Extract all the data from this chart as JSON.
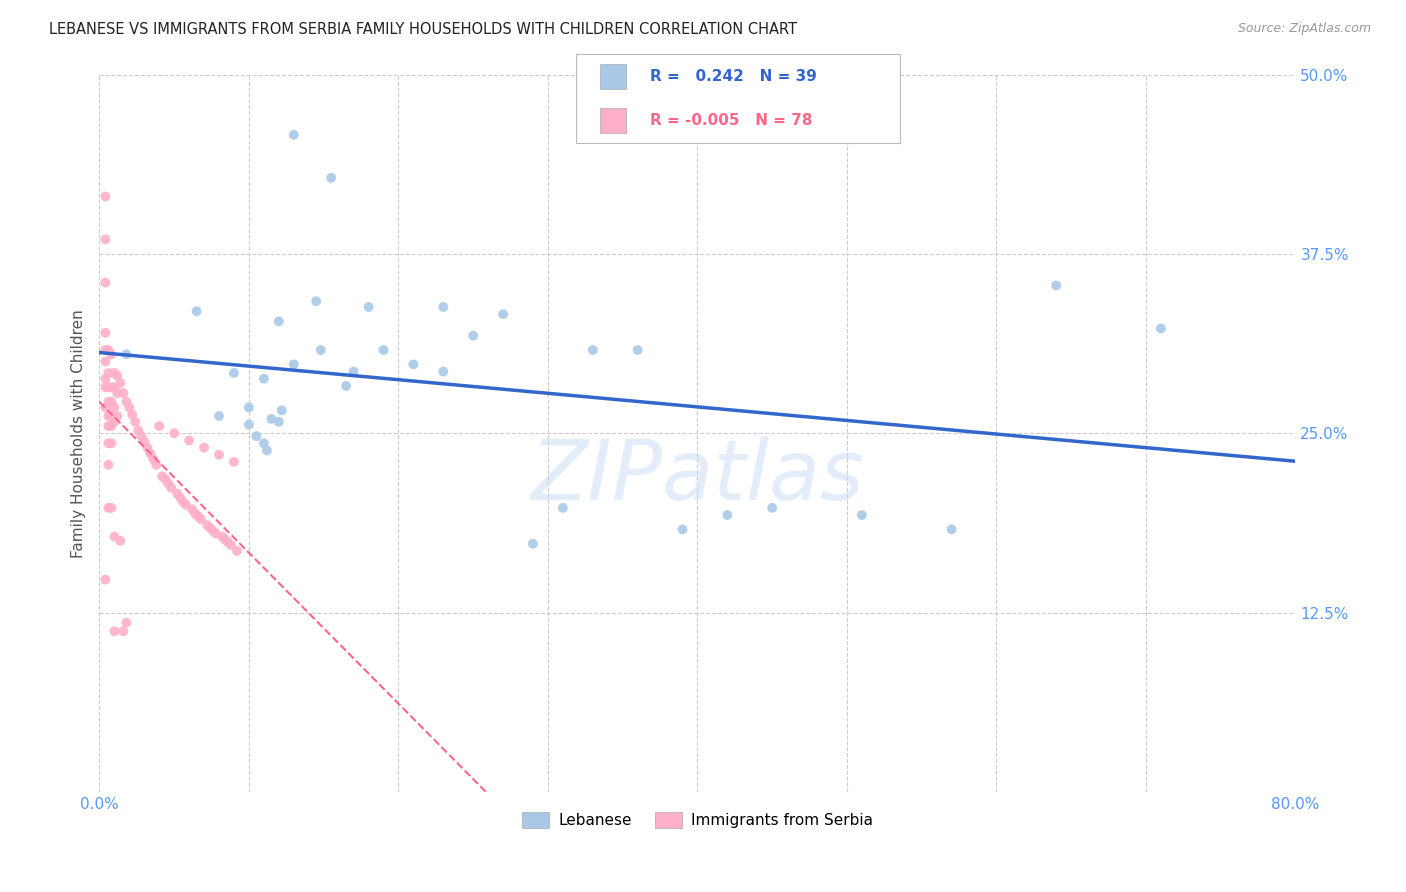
{
  "title": "LEBANESE VS IMMIGRANTS FROM SERBIA FAMILY HOUSEHOLDS WITH CHILDREN CORRELATION CHART",
  "source": "Source: ZipAtlas.com",
  "ylabel": "Family Households with Children",
  "xlim": [
    0.0,
    0.8
  ],
  "ylim": [
    0.0,
    0.5
  ],
  "xticks": [
    0.0,
    0.1,
    0.2,
    0.3,
    0.4,
    0.5,
    0.6,
    0.7,
    0.8
  ],
  "xticklabels": [
    "0.0%",
    "",
    "",
    "",
    "",
    "",
    "",
    "",
    "80.0%"
  ],
  "yticks": [
    0.0,
    0.125,
    0.25,
    0.375,
    0.5
  ],
  "yticklabels": [
    "",
    "12.5%",
    "25.0%",
    "37.5%",
    "50.0%"
  ],
  "grid_color": "#cccccc",
  "background_color": "#ffffff",
  "watermark": "ZIPatlas",
  "blue_color": "#a8c8e8",
  "pink_color": "#ffb0c8",
  "blue_line_color": "#3366cc",
  "pink_line_color": "#ff6688",
  "tick_color": "#5599ff",
  "lebanese_x": [
    0.018,
    0.065,
    0.08,
    0.09,
    0.1,
    0.11,
    0.12,
    0.105,
    0.115,
    0.1,
    0.11,
    0.112,
    0.122,
    0.145,
    0.155,
    0.165,
    0.12,
    0.13,
    0.148,
    0.17,
    0.19,
    0.21,
    0.23,
    0.25,
    0.27,
    0.29,
    0.31,
    0.33,
    0.36,
    0.39,
    0.42,
    0.45,
    0.51,
    0.57,
    0.64,
    0.71,
    0.13,
    0.18,
    0.23
  ],
  "lebanese_y": [
    0.305,
    0.335,
    0.262,
    0.292,
    0.268,
    0.288,
    0.258,
    0.248,
    0.26,
    0.256,
    0.243,
    0.238,
    0.266,
    0.342,
    0.428,
    0.283,
    0.328,
    0.298,
    0.308,
    0.293,
    0.308,
    0.298,
    0.293,
    0.318,
    0.333,
    0.173,
    0.198,
    0.308,
    0.308,
    0.183,
    0.193,
    0.198,
    0.193,
    0.183,
    0.353,
    0.323,
    0.458,
    0.338,
    0.338
  ],
  "serbia_x": [
    0.004,
    0.004,
    0.004,
    0.004,
    0.004,
    0.004,
    0.004,
    0.004,
    0.004,
    0.004,
    0.006,
    0.006,
    0.006,
    0.006,
    0.006,
    0.006,
    0.006,
    0.006,
    0.006,
    0.008,
    0.008,
    0.008,
    0.008,
    0.008,
    0.008,
    0.008,
    0.01,
    0.01,
    0.01,
    0.01,
    0.01,
    0.01,
    0.012,
    0.012,
    0.012,
    0.014,
    0.014,
    0.016,
    0.016,
    0.018,
    0.018,
    0.02,
    0.022,
    0.024,
    0.026,
    0.028,
    0.03,
    0.032,
    0.034,
    0.036,
    0.038,
    0.04,
    0.042,
    0.044,
    0.046,
    0.048,
    0.05,
    0.052,
    0.054,
    0.056,
    0.058,
    0.06,
    0.062,
    0.064,
    0.066,
    0.068,
    0.07,
    0.072,
    0.074,
    0.076,
    0.078,
    0.08,
    0.082,
    0.084,
    0.086,
    0.088,
    0.09,
    0.092
  ],
  "serbia_y": [
    0.415,
    0.385,
    0.355,
    0.32,
    0.308,
    0.3,
    0.288,
    0.282,
    0.268,
    0.148,
    0.308,
    0.292,
    0.282,
    0.272,
    0.262,
    0.255,
    0.243,
    0.228,
    0.198,
    0.305,
    0.282,
    0.272,
    0.262,
    0.255,
    0.243,
    0.198,
    0.292,
    0.282,
    0.268,
    0.258,
    0.178,
    0.112,
    0.29,
    0.278,
    0.262,
    0.285,
    0.175,
    0.278,
    0.112,
    0.272,
    0.118,
    0.268,
    0.263,
    0.258,
    0.252,
    0.248,
    0.244,
    0.24,
    0.236,
    0.232,
    0.228,
    0.255,
    0.22,
    0.218,
    0.215,
    0.212,
    0.25,
    0.208,
    0.205,
    0.202,
    0.2,
    0.245,
    0.197,
    0.194,
    0.192,
    0.19,
    0.24,
    0.186,
    0.184,
    0.182,
    0.18,
    0.235,
    0.178,
    0.176,
    0.174,
    0.172,
    0.23,
    0.168
  ]
}
